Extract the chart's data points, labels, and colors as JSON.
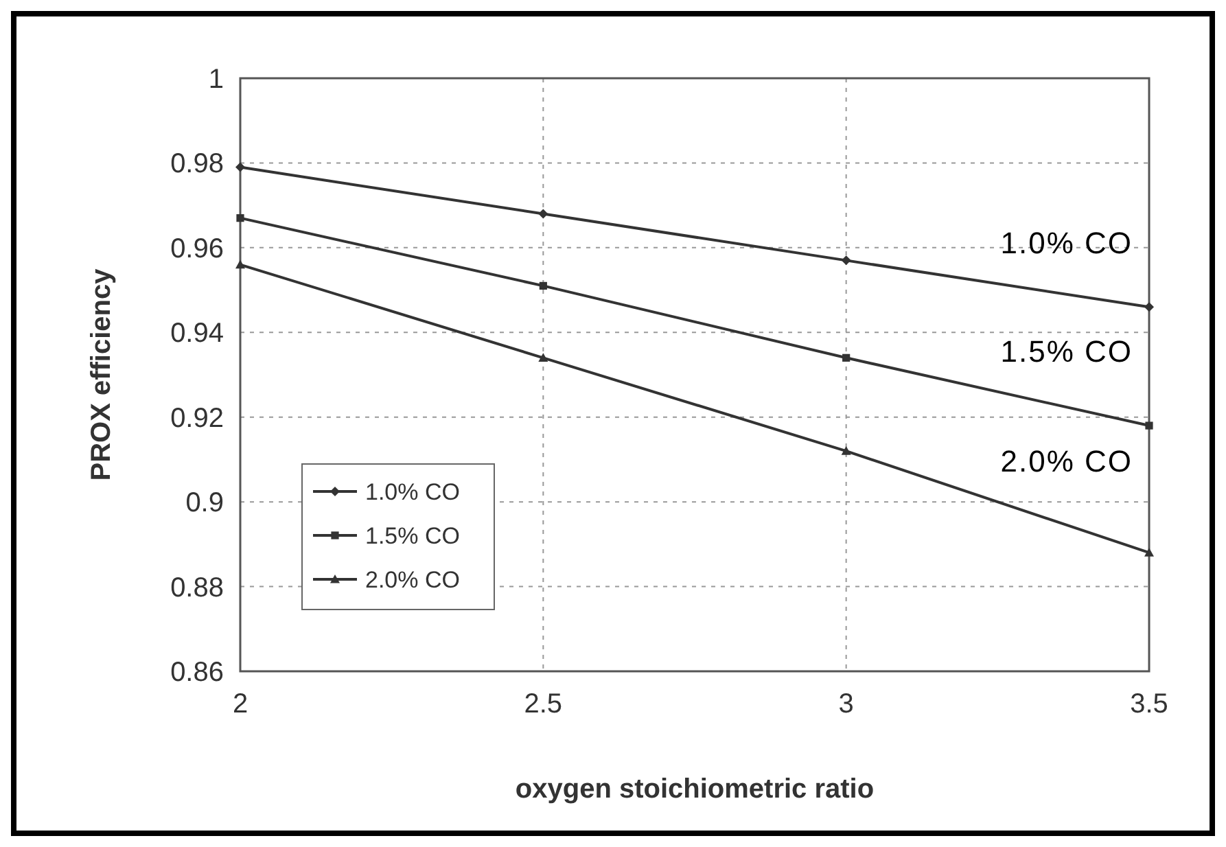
{
  "chart_data": {
    "type": "line",
    "xlabel": "oxygen stoichiometric ratio",
    "ylabel": "PROX efficiency",
    "x": [
      2,
      2.5,
      3,
      3.5
    ],
    "series": [
      {
        "name": "1.0% CO",
        "color": "#333333",
        "marker": "diamond",
        "values": [
          0.979,
          0.968,
          0.957,
          0.946
        ]
      },
      {
        "name": "1.5% CO",
        "color": "#333333",
        "marker": "square",
        "values": [
          0.967,
          0.951,
          0.934,
          0.918
        ]
      },
      {
        "name": "2.0% CO",
        "color": "#333333",
        "marker": "triangle",
        "values": [
          0.956,
          0.934,
          0.912,
          0.888
        ]
      }
    ],
    "xlim": [
      2,
      3.5
    ],
    "xticks": [
      2,
      2.5,
      3,
      3.5
    ],
    "ylim": [
      0.86,
      1
    ],
    "yticks": [
      0.86,
      0.88,
      0.9,
      0.92,
      0.94,
      0.96,
      0.98,
      1
    ],
    "grid": true,
    "legend": "bottom left",
    "line_style": "solid",
    "annotations": [
      "1.0% CO",
      "1.5% CO",
      "2.0% CO"
    ]
  }
}
